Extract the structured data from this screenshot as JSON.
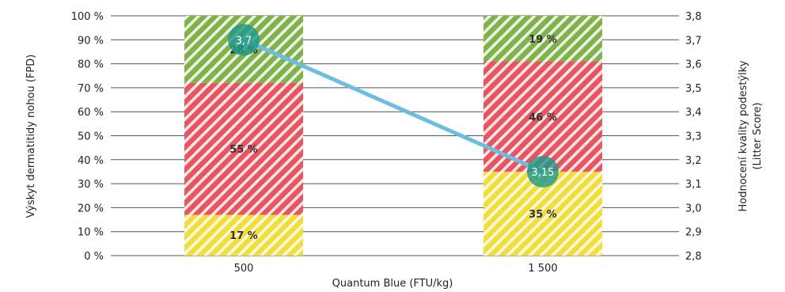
{
  "chart_data": {
    "type": "bar",
    "stacked": true,
    "percent_stacked": true,
    "categories": [
      "500",
      "1 500"
    ],
    "xlabel": "Quantum Blue (FTU/kg)",
    "ylabel_left": "Výskyt dermatitidy nohou (FPD)",
    "ylabel_right_line1": "Hodnocení kvality podestýlky",
    "ylabel_right_line2": "(Litter Score)",
    "y_left_lim": [
      0,
      100
    ],
    "y_left_ticks": [
      "0 %",
      "10 %",
      "20 %",
      "30 %",
      "40 %",
      "50 %",
      "60 %",
      "70 %",
      "80 %",
      "90 %",
      "100 %"
    ],
    "y_right_lim": [
      2.8,
      3.8
    ],
    "y_right_ticks": [
      "2,8",
      "2,9",
      "3,0",
      "3,1",
      "3,2",
      "3,3",
      "3,4",
      "3,5",
      "3,6",
      "3,7",
      "3,8"
    ],
    "grid": true,
    "series": [
      {
        "color": "#f2dd3a",
        "values": [
          17,
          35
        ],
        "labels": [
          "17 %",
          "35 %"
        ]
      },
      {
        "color": "#e8545f",
        "values": [
          55,
          46
        ],
        "labels": [
          "55 %",
          "46 %"
        ]
      },
      {
        "color": "#7fb24a",
        "values": [
          28,
          19
        ],
        "labels": [
          "28 %",
          "19 %"
        ]
      }
    ],
    "line": {
      "axis": "right",
      "color": "#6cbde0",
      "marker_color": "#1f9a8a",
      "values": [
        3.7,
        3.15
      ],
      "labels": [
        "3,7",
        "3,15"
      ]
    }
  }
}
